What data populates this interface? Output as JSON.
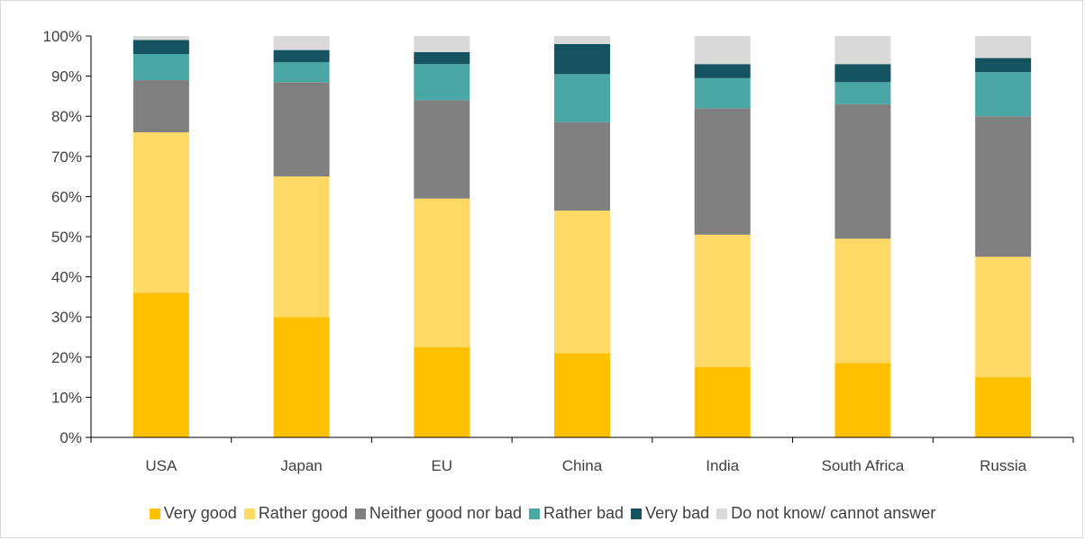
{
  "chart_data": {
    "type": "bar",
    "stacked": true,
    "categories": [
      "USA",
      "Japan",
      "EU",
      "China",
      "India",
      "South Africa",
      "Russia"
    ],
    "y_ticks": [
      "0%",
      "10%",
      "20%",
      "30%",
      "40%",
      "50%",
      "60%",
      "70%",
      "80%",
      "90%",
      "100%"
    ],
    "ylim": [
      0,
      100
    ],
    "grid": false,
    "legend_position": "bottom",
    "series": [
      {
        "name": "Very good",
        "color": "#FFC000",
        "values": [
          36,
          30,
          22.5,
          21,
          17.5,
          18.5,
          15
        ]
      },
      {
        "name": "Rather good",
        "color": "#FFD966",
        "values": [
          40,
          35,
          37,
          35.5,
          33,
          31,
          30
        ]
      },
      {
        "name": "Neither good nor bad",
        "color": "#808080",
        "values": [
          13,
          23.5,
          24.5,
          22,
          31.5,
          33.5,
          35
        ]
      },
      {
        "name": "Rather bad",
        "color": "#4BA6A6",
        "values": [
          6.5,
          5,
          9,
          12,
          7.5,
          5.5,
          11
        ]
      },
      {
        "name": "Very bad",
        "color": "#14535F",
        "values": [
          3.5,
          3,
          3,
          7.5,
          3.5,
          4.5,
          3.5
        ]
      },
      {
        "name": "Do not know/ cannot answer",
        "color": "#D9D9D9",
        "values": [
          1,
          3.5,
          4,
          2,
          7,
          7,
          5.5
        ]
      }
    ]
  }
}
